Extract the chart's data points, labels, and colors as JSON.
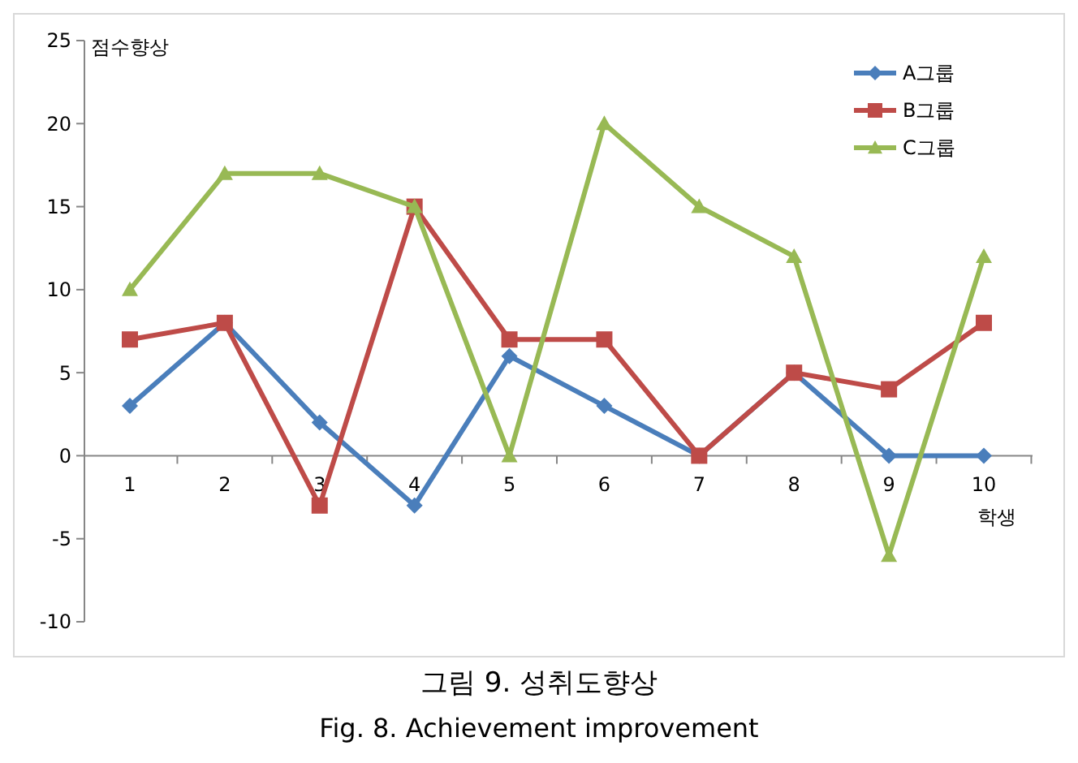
{
  "chart_data": {
    "type": "line",
    "ylabel": "점수향상",
    "xlabel": "학생",
    "categories": [
      "1",
      "2",
      "3",
      "4",
      "5",
      "6",
      "7",
      "8",
      "9",
      "10"
    ],
    "series": [
      {
        "name": "A그룹",
        "color": "#4a7ebb",
        "marker": "diamond",
        "values": [
          3,
          8,
          2,
          -3,
          6,
          3,
          0,
          5,
          0,
          0
        ]
      },
      {
        "name": "B그룹",
        "color": "#be4b48",
        "marker": "square",
        "values": [
          7,
          8,
          -3,
          15,
          7,
          7,
          0,
          5,
          4,
          8
        ]
      },
      {
        "name": "C그룹",
        "color": "#98b954",
        "marker": "triangle",
        "values": [
          10,
          17,
          17,
          15,
          0,
          20,
          15,
          12,
          -6,
          12
        ]
      }
    ],
    "ylim": [
      -10,
      25
    ],
    "yticks": [
      -10,
      -5,
      0,
      5,
      10,
      15,
      20,
      25
    ],
    "grid": false,
    "legend": "top right",
    "annotations": [
      "그림 9. 성취도향상",
      "Fig. 8. Achievement improvement"
    ]
  }
}
